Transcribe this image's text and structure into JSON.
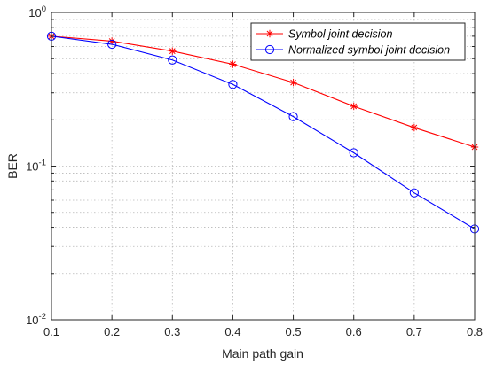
{
  "chart_data": {
    "type": "line",
    "xlabel": "Main path gain",
    "ylabel": "BER",
    "x": [
      0.1,
      0.2,
      0.3,
      0.4,
      0.5,
      0.6,
      0.7,
      0.8
    ],
    "xlim": [
      0.1,
      0.8
    ],
    "ylim": [
      0.01,
      1
    ],
    "yscale": "log",
    "grid": true,
    "legend_position": "top-right",
    "x_ticks": [
      "0.1",
      "0.2",
      "0.3",
      "0.4",
      "0.5",
      "0.6",
      "0.7",
      "0.8"
    ],
    "y_ticks": [
      {
        "base": "10",
        "exp": "-2"
      },
      {
        "base": "10",
        "exp": "-1"
      },
      {
        "base": "10",
        "exp": "0"
      }
    ],
    "series": [
      {
        "name": "Symbol joint decision",
        "color": "#ff0000",
        "marker": "asterisk",
        "values": [
          0.7,
          0.65,
          0.56,
          0.46,
          0.35,
          0.245,
          0.178,
          0.133
        ]
      },
      {
        "name": "Normalized symbol joint decision",
        "color": "#0000ff",
        "marker": "circle",
        "values": [
          0.7,
          0.62,
          0.49,
          0.34,
          0.21,
          0.122,
          0.067,
          0.039
        ]
      }
    ]
  }
}
